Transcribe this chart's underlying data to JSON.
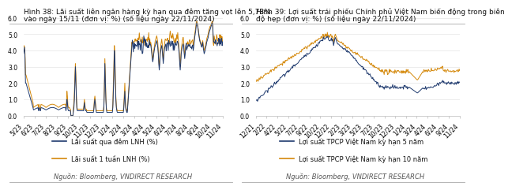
{
  "chart1": {
    "title1": "Hình 38: Lãi suất liên ngân hàng kỳ hạn qua đêm tăng vọt lên 5,78%",
    "title2": "vào ngày 15/11 (đơn vị: %) (số liệu ngày 22/11/2024)",
    "xticks": [
      "5/23",
      "6/23",
      "7/23",
      "8/23",
      "9/23",
      "10/23",
      "11/23",
      "12/23",
      "1/24",
      "2/24",
      "3/24",
      "4/24",
      "5/24",
      "6/24",
      "7/24",
      "8/24",
      "9/24",
      "10/24",
      "11/24"
    ],
    "ylim": [
      0.0,
      6.0
    ],
    "yticks": [
      0.0,
      1.0,
      2.0,
      3.0,
      4.0,
      5.0,
      6.0
    ],
    "legend1": "Lãi suất qua đêm LNH (%)",
    "legend2": "Lãi suất 1 tuần LNH (%)",
    "source": "Nguồn: Bloomberg, VNDIRECT RESEARCH",
    "color1": "#1f3a6e",
    "color2": "#d4880a"
  },
  "chart2": {
    "title1": "Hình 39: Lợi suất trái phiếu Chính phủ Việt Nam biến động trong biên",
    "title2": "độ hẹp (đơn vị: %) (số liệu ngày 22/11/2024)",
    "xticks": [
      "12/21",
      "2/22",
      "4/22",
      "5/22",
      "7/22",
      "9/22",
      "10/22",
      "12/22",
      "2/23",
      "3/23",
      "5/23",
      "7/23",
      "10/23",
      "12/23",
      "1/24",
      "3/24",
      "4/24",
      "6/24",
      "9/24",
      "11/24"
    ],
    "ylim": [
      0.0,
      6.0
    ],
    "yticks": [
      0.0,
      1.0,
      2.0,
      3.0,
      4.0,
      5.0,
      6.0
    ],
    "legend1": "Lợi suất TPCP Việt Nam kỳ hạn 5 năm",
    "legend2": "Lợi suất TPCP Việt Nam kỳ hạn 10 năm",
    "source": "Nguồn: Bloomberg, VNDIRECT RESEARCH",
    "color1": "#1f3a6e",
    "color2": "#d4880a"
  },
  "background_color": "#ffffff",
  "title_fontsize": 6.5,
  "label_fontsize": 6.0,
  "source_fontsize": 6.0,
  "tick_fontsize": 5.5
}
